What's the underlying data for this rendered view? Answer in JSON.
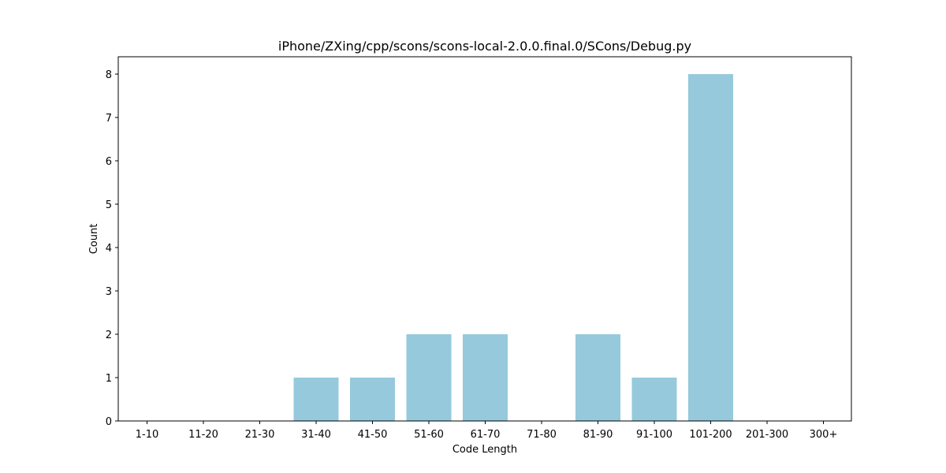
{
  "chart_data": {
    "type": "bar",
    "title": "iPhone/ZXing/cpp/scons/scons-local-2.0.0.final.0/SCons/Debug.py",
    "xlabel": "Code Length",
    "ylabel": "Count",
    "categories": [
      "1-10",
      "11-20",
      "21-30",
      "31-40",
      "41-50",
      "51-60",
      "61-70",
      "71-80",
      "81-90",
      "91-100",
      "101-200",
      "201-300",
      "300+"
    ],
    "values": [
      0,
      0,
      0,
      1,
      1,
      2,
      2,
      0,
      2,
      1,
      8,
      0,
      0
    ],
    "ylim": [
      0,
      8.4
    ],
    "yticks": [
      0,
      1,
      2,
      3,
      4,
      5,
      6,
      7,
      8
    ],
    "bar_color": "#96c9dc",
    "grid": false,
    "legend": "none"
  }
}
